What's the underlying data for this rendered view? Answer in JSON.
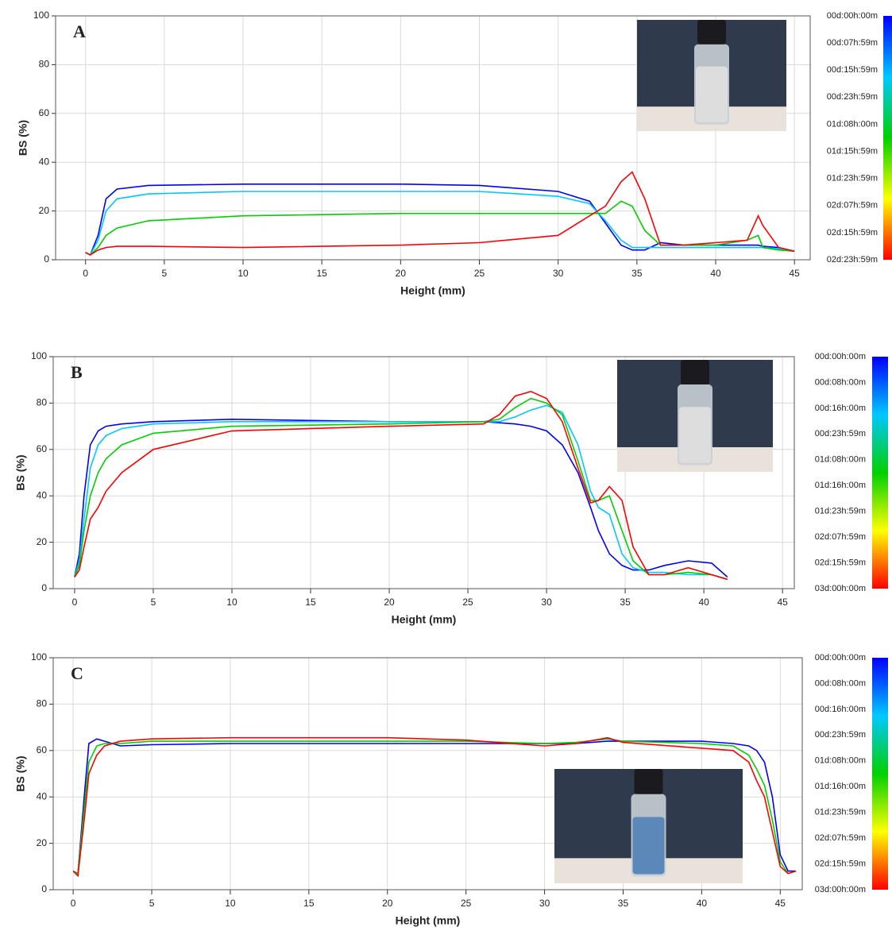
{
  "chart_data": [
    {
      "type": "line",
      "label": "A",
      "xlabel": "Height (mm)",
      "ylabel": "BS (%)",
      "xlim": [
        -1.9,
        46
      ],
      "ylim": [
        0,
        100
      ],
      "xticks": [
        0,
        5,
        10,
        15,
        20,
        25,
        30,
        35,
        40,
        45
      ],
      "yticks": [
        0,
        20,
        40,
        60,
        80,
        100
      ],
      "grid": true,
      "x": [
        0,
        0.3,
        0.8,
        1.3,
        2,
        4,
        10,
        20,
        25,
        30,
        32,
        33,
        34,
        34.7,
        35.5,
        36.5,
        38,
        40,
        42,
        42.7,
        43,
        44,
        45
      ],
      "series": [
        {
          "color": "#0000ff",
          "values": [
            3,
            2,
            10,
            25,
            29,
            30.5,
            31,
            31,
            30.5,
            28,
            24,
            15,
            6,
            4,
            4,
            7,
            6,
            6,
            6,
            6,
            5.5,
            5,
            3.5
          ]
        },
        {
          "color": "#00c8ff",
          "values": [
            3,
            2,
            8,
            20,
            25,
            27,
            28,
            28,
            28,
            26,
            23,
            16,
            8,
            5,
            5,
            5,
            5,
            5,
            5,
            5,
            5,
            4.5,
            3.5
          ]
        },
        {
          "color": "#00d000",
          "values": [
            3,
            2,
            5,
            10,
            13,
            16,
            18,
            19,
            19,
            19,
            19,
            19,
            24,
            22,
            12,
            6,
            6,
            6,
            8,
            10,
            5,
            4,
            3.5
          ]
        },
        {
          "color": "#ff0000",
          "values": [
            3,
            2,
            4,
            5,
            5.5,
            5.5,
            5,
            6,
            7,
            10,
            18,
            22,
            32,
            36,
            25,
            6,
            6,
            7,
            8,
            18,
            14,
            5,
            3.5
          ]
        }
      ],
      "colorbar": {
        "colors": [
          "#0000ff",
          "#00c8ff",
          "#00d000",
          "#ffff00",
          "#ff0000"
        ],
        "labels": [
          "00d:00h:00m",
          "00d:07h:59m",
          "00d:15h:59m",
          "00d:23h:59m",
          "01d:08h:00m",
          "01d:15h:59m",
          "01d:23h:59m",
          "02d:07h:59m",
          "02d:15h:59m",
          "02d:23h:59m"
        ]
      }
    },
    {
      "type": "line",
      "label": "B",
      "xlabel": "Height (mm)",
      "ylabel": "BS (%)",
      "xlim": [
        -1.36,
        45.75
      ],
      "ylim": [
        0,
        100
      ],
      "xticks": [
        0,
        5,
        10,
        15,
        20,
        25,
        30,
        35,
        40,
        45
      ],
      "yticks": [
        0,
        20,
        40,
        60,
        80,
        100
      ],
      "grid": true,
      "x": [
        0,
        0.3,
        0.6,
        1,
        1.5,
        2,
        3,
        5,
        10,
        20,
        26,
        27,
        28,
        29,
        30,
        31,
        32,
        32.8,
        33.3,
        34,
        34.8,
        35.5,
        36.5,
        37.5,
        39,
        40.5,
        41.5
      ],
      "series": [
        {
          "color": "#0000ff",
          "values": [
            5,
            15,
            40,
            62,
            68,
            70,
            71,
            72,
            73,
            72,
            72,
            71.5,
            71,
            70,
            68,
            62,
            50,
            35,
            25,
            15,
            10,
            8,
            8,
            10,
            12,
            11,
            5
          ]
        },
        {
          "color": "#00c8ff",
          "values": [
            5,
            12,
            30,
            52,
            62,
            66,
            69,
            71,
            72,
            72,
            72,
            72,
            74,
            77,
            79,
            76,
            62,
            42,
            35,
            32,
            15,
            9,
            7,
            7,
            6,
            6,
            4
          ]
        },
        {
          "color": "#00d000",
          "values": [
            5,
            10,
            25,
            40,
            50,
            56,
            62,
            67,
            70,
            71,
            72,
            73,
            78,
            82,
            80,
            75,
            55,
            38,
            38,
            40,
            25,
            12,
            6,
            6,
            7,
            6,
            4
          ]
        },
        {
          "color": "#ff0000",
          "values": [
            5,
            8,
            18,
            30,
            35,
            42,
            50,
            60,
            68,
            70,
            71,
            75,
            83,
            85,
            82,
            72,
            52,
            37,
            38,
            44,
            38,
            18,
            6,
            6,
            9,
            6,
            4
          ]
        }
      ],
      "colorbar": {
        "colors": [
          "#0000ff",
          "#00c8ff",
          "#00d000",
          "#ffff00",
          "#ff0000"
        ],
        "labels": [
          "00d:00h:00m",
          "00d:08h:00m",
          "00d:16h:00m",
          "00d:23h:59m",
          "01d:08h:00m",
          "01d:16h:00m",
          "01d:23h:59m",
          "02d:07h:59m",
          "02d:15h:59m",
          "03d:00h:00m"
        ]
      }
    },
    {
      "type": "line",
      "label": "C",
      "xlabel": "Height (mm)",
      "ylabel": "BS (%)",
      "xlim": [
        -1.27,
        46.4
      ],
      "ylim": [
        0,
        100
      ],
      "xticks": [
        0,
        5,
        10,
        15,
        20,
        25,
        30,
        35,
        40,
        45
      ],
      "yticks": [
        0,
        20,
        40,
        60,
        80,
        100
      ],
      "grid": true,
      "x": [
        0,
        0.3,
        0.7,
        1,
        1.5,
        2,
        3,
        5,
        10,
        20,
        25,
        30,
        32,
        34,
        35,
        40,
        42,
        43,
        43.5,
        44,
        44.5,
        45,
        45.5,
        46
      ],
      "series": [
        {
          "color": "#0000ff",
          "values": [
            8,
            7,
            40,
            63,
            65,
            64,
            62,
            62.5,
            63,
            63,
            63,
            63,
            63,
            64,
            64,
            64,
            63,
            62,
            60,
            55,
            40,
            15,
            8,
            8
          ]
        },
        {
          "color": "#00d000",
          "values": [
            8,
            7,
            35,
            55,
            62,
            63,
            63,
            64,
            64,
            64,
            64,
            63,
            63.5,
            65,
            64,
            63,
            62,
            58,
            52,
            45,
            30,
            12,
            7,
            8
          ]
        },
        {
          "color": "#ff0000",
          "values": [
            8,
            6,
            30,
            50,
            58,
            62,
            64,
            65,
            65.5,
            65.5,
            64.5,
            62,
            63,
            65.5,
            63.5,
            61,
            60,
            55,
            47,
            40,
            25,
            10,
            7,
            8
          ]
        }
      ],
      "colorbar": {
        "colors": [
          "#0000ff",
          "#00c8ff",
          "#00d000",
          "#ffff00",
          "#ff0000"
        ],
        "labels": [
          "00d:00h:00m",
          "00d:08h:00m",
          "00d:16h:00m",
          "00d:23h:59m",
          "01d:08h:00m",
          "01d:16h:00m",
          "01d:23h:59m",
          "02d:07h:59m",
          "02d:15h:59m",
          "03d:00h:00m"
        ]
      }
    }
  ]
}
